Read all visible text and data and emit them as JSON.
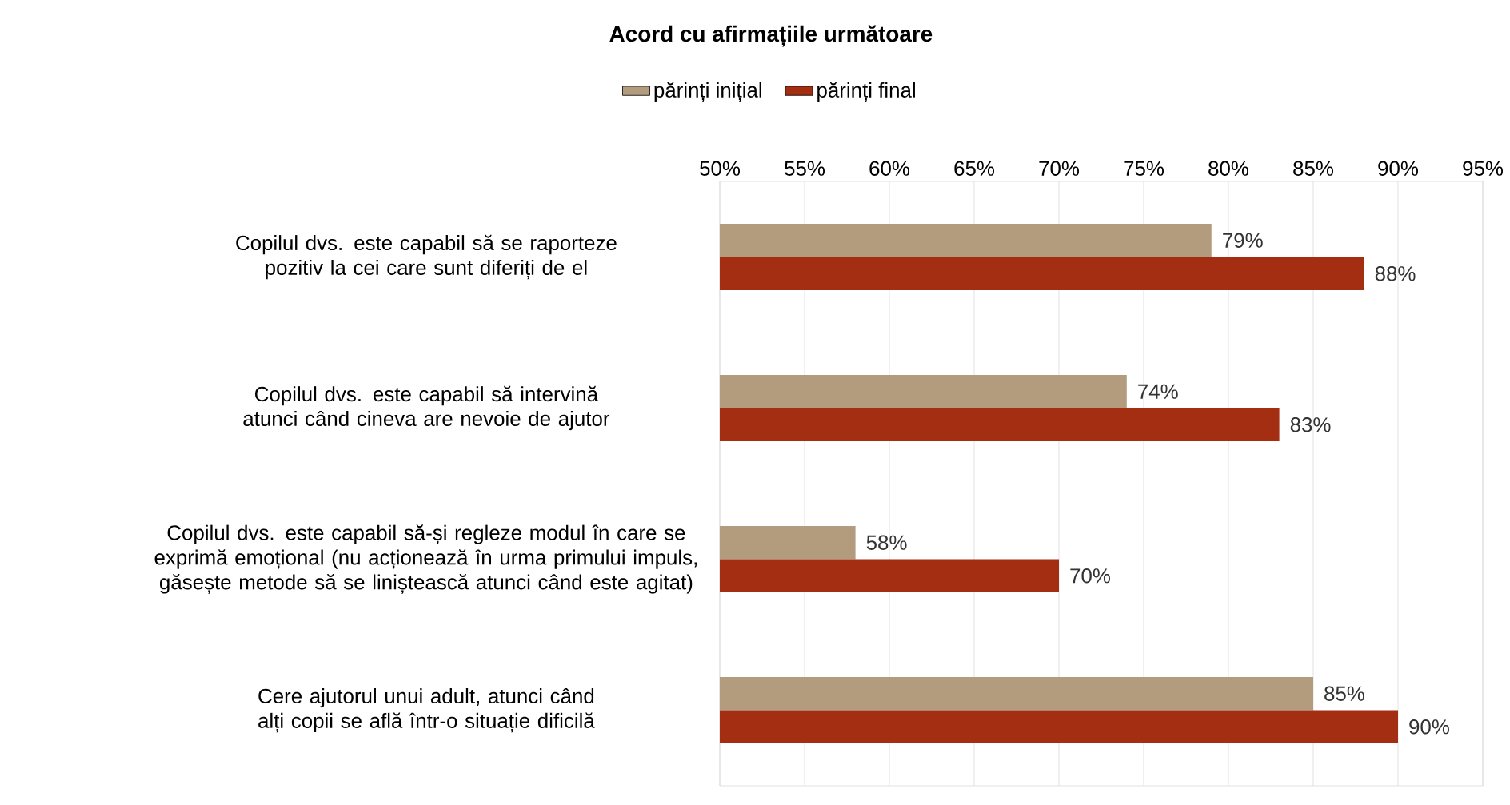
{
  "chart_data": {
    "type": "bar",
    "orientation": "horizontal",
    "title": "Acord cu afirmațiile următoare",
    "categories": [
      "Copilul dvs. este capabil să se raporteze pozitiv la cei care sunt diferiți de el",
      "Copilul dvs. este capabil să intervină atunci când cineva are nevoie de ajutor",
      "Copilul dvs. este capabil să-și regleze modul în care se exprimă emoțional (nu acționează în urma primului impuls, găsește metode să se liniștească atunci când este agitat)",
      "Cere ajutorul unui adult, atunci când alți copii se află într-o situație dificilă"
    ],
    "series": [
      {
        "name": "părinți inițial",
        "color": "#b39c7d",
        "values": [
          79,
          74,
          58,
          85
        ],
        "value_labels": [
          "79%",
          "74%",
          "58%",
          "85%"
        ]
      },
      {
        "name": "părinți final",
        "color": "#a32e12",
        "values": [
          88,
          83,
          70,
          90
        ],
        "value_labels": [
          "88%",
          "83%",
          "70%",
          "90%"
        ]
      }
    ],
    "xlim": [
      50,
      95
    ],
    "xticks": [
      {
        "value": 50,
        "label": "50%"
      },
      {
        "value": 55,
        "label": "55%"
      },
      {
        "value": 60,
        "label": "60%"
      },
      {
        "value": 65,
        "label": "65%"
      },
      {
        "value": 70,
        "label": "70%"
      },
      {
        "value": 75,
        "label": "75%"
      },
      {
        "value": 80,
        "label": "80%"
      },
      {
        "value": 85,
        "label": "85%"
      },
      {
        "value": 90,
        "label": "90%"
      },
      {
        "value": 95,
        "label": "95%"
      }
    ],
    "grid": "x",
    "legend": "top"
  }
}
